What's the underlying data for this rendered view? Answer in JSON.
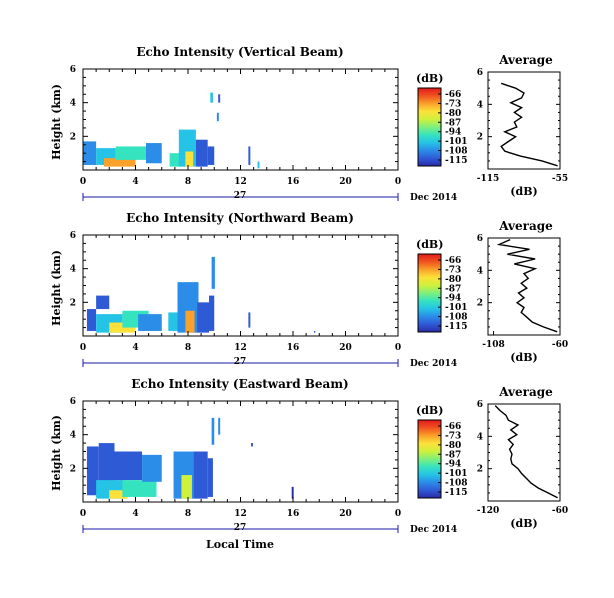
{
  "figure": {
    "xlabel": "Local Time",
    "date_label": "Dec 2014",
    "day_label": "27",
    "colorbar_unit": "(dB)",
    "colorbar_ticks": [
      "-66",
      "-73",
      "-80",
      "-87",
      "-94",
      "-101",
      "-108",
      "-115"
    ],
    "colormap": [
      "#2a2aa8",
      "#2f5ad6",
      "#2b8de8",
      "#25c3e6",
      "#36e3bf",
      "#7ff07b",
      "#d0f03b",
      "#fbe13a",
      "#f9a12a",
      "#f0531f",
      "#e31a1c"
    ],
    "avg_title": "Average",
    "avg_xlabel": "(dB)"
  },
  "chart_data": [
    {
      "type": "heatmap",
      "title": "Echo Intensity (Vertical Beam)",
      "ylabel": "Height (km)",
      "xlim": [
        0,
        24
      ],
      "ylim": [
        0,
        6
      ],
      "xticks": [
        "0",
        "4",
        "8",
        "12",
        "16",
        "20",
        "0"
      ],
      "yticks": [
        "2",
        "4",
        "6"
      ],
      "clim": [
        -115,
        -66
      ],
      "cells": [
        {
          "t0": 0.0,
          "t1": 1.0,
          "h0": 0.3,
          "h1": 1.7,
          "v": -104
        },
        {
          "t0": 1.0,
          "t1": 2.5,
          "h0": 0.3,
          "h1": 1.3,
          "v": -99
        },
        {
          "t0": 1.6,
          "t1": 4.0,
          "h0": 0.2,
          "h1": 0.7,
          "v": -76
        },
        {
          "t0": 2.5,
          "t1": 4.8,
          "h0": 0.6,
          "h1": 1.4,
          "v": -93
        },
        {
          "t0": 4.8,
          "t1": 6.0,
          "h0": 0.4,
          "h1": 1.6,
          "v": -106
        },
        {
          "t0": 6.6,
          "t1": 7.4,
          "h0": 0.2,
          "h1": 1.0,
          "v": -97
        },
        {
          "t0": 7.3,
          "t1": 8.6,
          "h0": 0.2,
          "h1": 2.4,
          "v": -102
        },
        {
          "t0": 7.8,
          "t1": 8.4,
          "h0": 0.2,
          "h1": 1.1,
          "v": -80
        },
        {
          "t0": 8.6,
          "t1": 9.5,
          "h0": 0.2,
          "h1": 1.8,
          "v": -109
        },
        {
          "t0": 9.5,
          "t1": 10.0,
          "h0": 0.3,
          "h1": 1.4,
          "v": -111
        },
        {
          "t0": 9.7,
          "t1": 9.9,
          "h0": 4.0,
          "h1": 4.6,
          "v": -101
        },
        {
          "t0": 10.2,
          "t1": 10.35,
          "h0": 2.9,
          "h1": 3.4,
          "v": -106
        },
        {
          "t0": 10.3,
          "t1": 10.45,
          "h0": 4.0,
          "h1": 4.5,
          "v": -112
        },
        {
          "t0": 12.6,
          "t1": 12.75,
          "h0": 0.3,
          "h1": 1.4,
          "v": -110
        },
        {
          "t0": 13.3,
          "t1": 13.45,
          "h0": 0.1,
          "h1": 0.5,
          "v": -102
        }
      ],
      "avg_profile": {
        "xlim": [
          -115,
          -55
        ],
        "xticks": [
          "-115",
          "-55"
        ],
        "yticks": [
          "2",
          "4",
          "6"
        ],
        "height_km": [
          0.2,
          0.5,
          0.8,
          1.1,
          1.4,
          1.7,
          2.0,
          2.3,
          2.6,
          2.9,
          3.2,
          3.5,
          3.8,
          4.1,
          4.4,
          4.7,
          5.0,
          5.3
        ],
        "db": [
          -57,
          -70,
          -88,
          -101,
          -104,
          -98,
          -92,
          -101,
          -91,
          -93,
          -87,
          -93,
          -87,
          -96,
          -87,
          -85,
          -92,
          -104
        ]
      }
    },
    {
      "type": "heatmap",
      "title": "Echo Intensity (Northward Beam)",
      "ylabel": "Height (km)",
      "xlim": [
        0,
        24
      ],
      "ylim": [
        0,
        6
      ],
      "xticks": [
        "0",
        "4",
        "8",
        "12",
        "16",
        "20",
        "0"
      ],
      "yticks": [
        "2",
        "4",
        "6"
      ],
      "clim": [
        -115,
        -66
      ],
      "cells": [
        {
          "t0": 0.3,
          "t1": 1.0,
          "h0": 0.3,
          "h1": 1.6,
          "v": -108
        },
        {
          "t0": 1.0,
          "t1": 2.0,
          "h0": 1.6,
          "h1": 2.4,
          "v": -112
        },
        {
          "t0": 1.0,
          "t1": 3.0,
          "h0": 0.2,
          "h1": 1.3,
          "v": -101
        },
        {
          "t0": 2.0,
          "t1": 4.0,
          "h0": 0.2,
          "h1": 0.8,
          "v": -80
        },
        {
          "t0": 3.0,
          "t1": 5.0,
          "h0": 0.5,
          "h1": 1.5,
          "v": -94
        },
        {
          "t0": 4.2,
          "t1": 6.0,
          "h0": 0.3,
          "h1": 1.3,
          "v": -106
        },
        {
          "t0": 6.5,
          "t1": 7.4,
          "h0": 0.3,
          "h1": 1.4,
          "v": -99
        },
        {
          "t0": 7.2,
          "t1": 8.8,
          "h0": 0.2,
          "h1": 3.2,
          "v": -104
        },
        {
          "t0": 7.8,
          "t1": 8.5,
          "h0": 0.2,
          "h1": 1.5,
          "v": -78
        },
        {
          "t0": 8.7,
          "t1": 9.6,
          "h0": 0.2,
          "h1": 2.0,
          "v": -108
        },
        {
          "t0": 9.6,
          "t1": 10.0,
          "h0": 0.3,
          "h1": 2.4,
          "v": -110
        },
        {
          "t0": 9.8,
          "t1": 10.05,
          "h0": 2.8,
          "h1": 4.7,
          "v": -106
        },
        {
          "t0": 12.6,
          "t1": 12.75,
          "h0": 0.5,
          "h1": 1.4,
          "v": -108
        },
        {
          "t0": 17.6,
          "t1": 17.7,
          "h0": 0.2,
          "h1": 0.3,
          "v": -112
        }
      ],
      "avg_profile": {
        "xlim": [
          -112,
          -60
        ],
        "xticks": [
          "-108",
          "-60"
        ],
        "yticks": [
          "2",
          "4",
          "6"
        ],
        "height_km": [
          0.2,
          0.5,
          0.8,
          1.1,
          1.4,
          1.7,
          2.0,
          2.3,
          2.6,
          2.9,
          3.2,
          3.5,
          3.8,
          4.1,
          4.4,
          4.7,
          5.0,
          5.3,
          5.6,
          5.9
        ],
        "db": [
          -62,
          -72,
          -80,
          -84,
          -88,
          -86,
          -91,
          -86,
          -90,
          -84,
          -88,
          -83,
          -86,
          -78,
          -93,
          -78,
          -98,
          -82,
          -104,
          -96
        ]
      }
    },
    {
      "type": "heatmap",
      "title": "Echo Intensity (Eastward Beam)",
      "ylabel": "Height (km)",
      "xlim": [
        0,
        24
      ],
      "ylim": [
        0,
        6
      ],
      "xticks": [
        "0",
        "4",
        "8",
        "12",
        "16",
        "20",
        "0"
      ],
      "yticks": [
        "2",
        "4",
        "6"
      ],
      "clim": [
        -115,
        -66
      ],
      "cells": [
        {
          "t0": 0.3,
          "t1": 1.2,
          "h0": 0.4,
          "h1": 3.3,
          "v": -108
        },
        {
          "t0": 1.2,
          "t1": 2.4,
          "h0": 1.2,
          "h1": 3.5,
          "v": -110
        },
        {
          "t0": 1.0,
          "t1": 3.2,
          "h0": 0.2,
          "h1": 1.3,
          "v": -101
        },
        {
          "t0": 2.0,
          "t1": 3.4,
          "h0": 0.2,
          "h1": 0.7,
          "v": -80
        },
        {
          "t0": 2.4,
          "t1": 4.5,
          "h0": 1.3,
          "h1": 3.0,
          "v": -109
        },
        {
          "t0": 3.0,
          "t1": 5.6,
          "h0": 0.3,
          "h1": 1.3,
          "v": -97
        },
        {
          "t0": 4.5,
          "t1": 6.0,
          "h0": 1.2,
          "h1": 2.8,
          "v": -106
        },
        {
          "t0": 6.9,
          "t1": 8.4,
          "h0": 0.2,
          "h1": 3.0,
          "v": -104
        },
        {
          "t0": 7.5,
          "t1": 8.3,
          "h0": 0.2,
          "h1": 1.6,
          "v": -84
        },
        {
          "t0": 8.4,
          "t1": 9.5,
          "h0": 0.2,
          "h1": 3.0,
          "v": -108
        },
        {
          "t0": 9.5,
          "t1": 9.9,
          "h0": 0.3,
          "h1": 2.6,
          "v": -110
        },
        {
          "t0": 9.8,
          "t1": 10.0,
          "h0": 3.4,
          "h1": 5.0,
          "v": -106
        },
        {
          "t0": 10.3,
          "t1": 10.45,
          "h0": 4.0,
          "h1": 5.0,
          "v": -104
        },
        {
          "t0": 12.8,
          "t1": 12.95,
          "h0": 3.3,
          "h1": 3.5,
          "v": -112
        },
        {
          "t0": 15.9,
          "t1": 16.05,
          "h0": 0.2,
          "h1": 0.9,
          "v": -115
        }
      ],
      "avg_profile": {
        "xlim": [
          -120,
          -60
        ],
        "xticks": [
          "-120",
          "-60"
        ],
        "yticks": [
          "2",
          "4",
          "6"
        ],
        "height_km": [
          0.2,
          0.5,
          0.8,
          1.1,
          1.4,
          1.7,
          2.0,
          2.3,
          2.6,
          2.9,
          3.2,
          3.5,
          3.8,
          4.1,
          4.4,
          4.7,
          5.0,
          5.3,
          5.6,
          5.9
        ],
        "db": [
          -62,
          -70,
          -78,
          -84,
          -88,
          -92,
          -95,
          -100,
          -101,
          -100,
          -102,
          -99,
          -103,
          -96,
          -101,
          -95,
          -103,
          -105,
          -110,
          -114
        ]
      }
    }
  ]
}
